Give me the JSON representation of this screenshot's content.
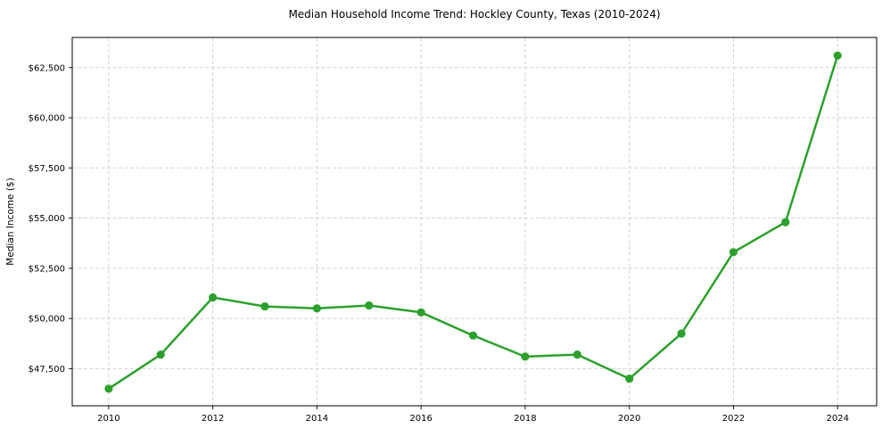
{
  "chart_data": {
    "type": "line",
    "title": "Median Household Income Trend: Hockley County, Texas (2010-2024)",
    "xlabel": "",
    "ylabel": "Median Income ($)",
    "x": [
      2010,
      2011,
      2012,
      2013,
      2014,
      2015,
      2016,
      2017,
      2018,
      2019,
      2020,
      2021,
      2022,
      2023,
      2024
    ],
    "series": [
      {
        "name": "Median Household Income",
        "values": [
          46500,
          48200,
          51050,
          50600,
          50500,
          50650,
          50300,
          49150,
          48100,
          48200,
          47000,
          49250,
          53300,
          54800,
          63100
        ]
      }
    ],
    "xticks": [
      2010,
      2012,
      2014,
      2016,
      2018,
      2020,
      2022,
      2024
    ],
    "xtick_labels": [
      "2010",
      "2012",
      "2014",
      "2016",
      "2018",
      "2020",
      "2022",
      "2024"
    ],
    "yticks": [
      47500,
      50000,
      52500,
      55000,
      57500,
      60000,
      62500
    ],
    "ytick_labels": [
      "$47,500",
      "$50,000",
      "$52,500",
      "$55,000",
      "$57,500",
      "$60,000",
      "$62,500"
    ],
    "xlim": [
      2009.3,
      2024.75
    ],
    "ylim": [
      45650,
      64000
    ],
    "grid": true,
    "legend": "none",
    "line_color": "#2ca02c",
    "marker": "circle",
    "background_color": "#ffffff",
    "grid_color": "#cfcfcf",
    "text_color": "#000000"
  }
}
